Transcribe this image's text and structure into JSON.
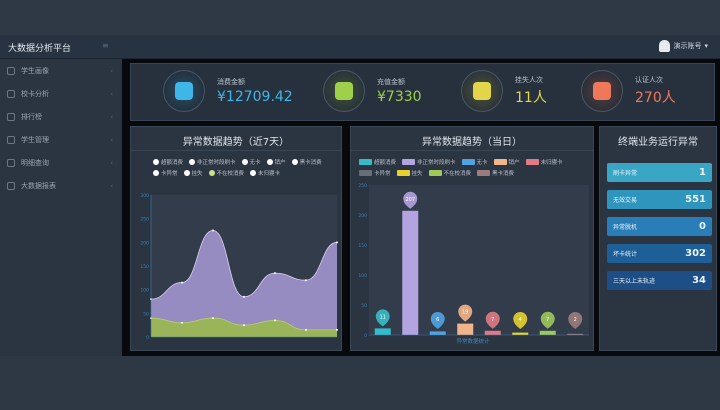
{
  "header": {
    "brand": "大数据分析平台",
    "user": "演示账号"
  },
  "sidebar": {
    "items": [
      {
        "label": "学生画像"
      },
      {
        "label": "校卡分析"
      },
      {
        "label": "排行榜"
      },
      {
        "label": "学生管理"
      },
      {
        "label": "明细查询"
      },
      {
        "label": "大数据报表"
      }
    ]
  },
  "stats": [
    {
      "label": "消费金额",
      "value": "¥12709.42",
      "color": "#3fb6e8",
      "icon": "coins-icon"
    },
    {
      "label": "充值金额",
      "value": "¥7330",
      "color": "#9ed04a",
      "icon": "money-bag-icon"
    },
    {
      "label": "挂失人次",
      "value": "11人",
      "color": "#e3d54a",
      "icon": "pointer-icon"
    },
    {
      "label": "认证人次",
      "value": "270人",
      "color": "#f0785a",
      "icon": "id-card-icon"
    }
  ],
  "trend": {
    "title": "异常数据趋势（近7天）",
    "legend": [
      "超额消费",
      "非正常时段刷卡",
      "无卡",
      "销户",
      "黑卡消费",
      "卡异常",
      "挂失",
      "不在校消费",
      "未归寝卡"
    ]
  },
  "today": {
    "title": "异常数据趋势（当日）",
    "xlabel": "异常数据统计",
    "legend": [
      {
        "name": "超额消费",
        "color": "#36bcc8"
      },
      {
        "name": "非正常时段刷卡",
        "color": "#b3a3e0"
      },
      {
        "name": "无卡",
        "color": "#4fa3e3"
      },
      {
        "name": "销户",
        "color": "#f2b48a"
      },
      {
        "name": "未归寝卡",
        "color": "#e07b86"
      },
      {
        "name": "卡异常",
        "color": "#666d75"
      },
      {
        "name": "挂失",
        "color": "#e6d22e"
      },
      {
        "name": "不在校消费",
        "color": "#9ec85a"
      },
      {
        "name": "黑卡消费",
        "color": "#9b7b7e"
      }
    ]
  },
  "terminal": {
    "title": "终端业务运行异常",
    "items": [
      {
        "label": "刷卡异常",
        "value": "1",
        "color": "#3aa6c6"
      },
      {
        "label": "无效交易",
        "value": "551",
        "color": "#2f95bd"
      },
      {
        "label": "异常脱机",
        "value": "0",
        "color": "#2a7eb8"
      },
      {
        "label": "坏卡统计",
        "value": "302",
        "color": "#1f5f98"
      },
      {
        "label": "三天以上未轨迹",
        "value": "34",
        "color": "#1d4f86"
      }
    ]
  },
  "chart_data": [
    {
      "type": "area",
      "title": "异常数据趋势（近7天）",
      "ylim": [
        0,
        300
      ],
      "yticks": [
        0,
        50,
        100,
        150,
        200,
        250,
        300
      ],
      "series": [
        {
          "name": "非正常时段刷卡",
          "values": [
            80,
            115,
            225,
            85,
            135,
            120,
            200
          ],
          "color": "#a99ad6"
        },
        {
          "name": "不在校消费",
          "values": [
            40,
            30,
            40,
            25,
            35,
            15,
            15
          ],
          "color": "#9ab84e"
        }
      ]
    },
    {
      "type": "bar",
      "title": "异常数据趋势（当日）",
      "ylim": [
        0,
        250
      ],
      "yticks": [
        0,
        50,
        100,
        150,
        200,
        250
      ],
      "categories": [
        "超额消费",
        "非正常时段刷卡",
        "无卡",
        "销户",
        "未归寝卡",
        "挂失",
        "不在校消费",
        "黑卡消费"
      ],
      "values": [
        11,
        207,
        6,
        19,
        7,
        4,
        7,
        2
      ],
      "colors": [
        "#36bcc8",
        "#b3a3e0",
        "#4fa3e3",
        "#f2b48a",
        "#e07b86",
        "#e6d22e",
        "#9ec85a",
        "#9b7b7e"
      ]
    }
  ]
}
